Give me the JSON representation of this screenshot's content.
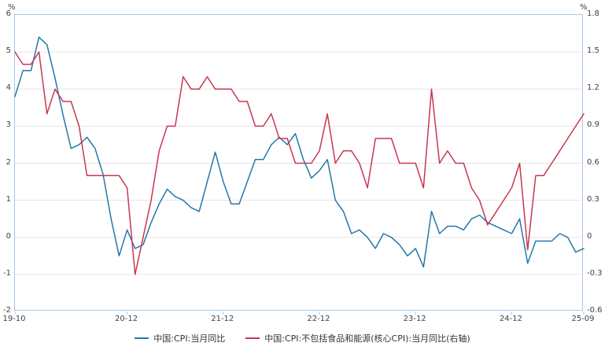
{
  "chart_data": {
    "type": "line",
    "title": "",
    "grid": "horizontal",
    "legend_position": "bottom",
    "left_axis": {
      "unit": "%",
      "min": -2,
      "max": 6,
      "step": 1,
      "ticks": [
        "6",
        "5",
        "4",
        "3",
        "2",
        "1",
        "0",
        "-1",
        "-2"
      ]
    },
    "right_axis": {
      "unit": "%",
      "min": -0.6,
      "max": 1.8,
      "step": 0.3,
      "ticks": [
        "1.8",
        "1.5",
        "1.2",
        "0.9",
        "0.6",
        "0.3",
        "0",
        "-0.3",
        "-0.6"
      ]
    },
    "x": [
      "19-10",
      "19-11",
      "19-12",
      "20-01",
      "20-02",
      "20-03",
      "20-04",
      "20-05",
      "20-06",
      "20-07",
      "20-08",
      "20-09",
      "20-10",
      "20-11",
      "20-12",
      "21-01",
      "21-02",
      "21-03",
      "21-04",
      "21-05",
      "21-06",
      "21-07",
      "21-08",
      "21-09",
      "21-10",
      "21-11",
      "21-12",
      "22-01",
      "22-02",
      "22-03",
      "22-04",
      "22-05",
      "22-06",
      "22-07",
      "22-08",
      "22-09",
      "22-10",
      "22-11",
      "22-12",
      "23-01",
      "23-02",
      "23-03",
      "23-04",
      "23-05",
      "23-06",
      "23-07",
      "23-08",
      "23-09",
      "23-10",
      "23-11",
      "23-12",
      "24-01",
      "24-02",
      "24-03",
      "24-04",
      "24-05",
      "24-06",
      "24-07",
      "24-08",
      "24-09",
      "24-10",
      "24-11",
      "24-12",
      "25-01",
      "25-02",
      "25-03",
      "25-04",
      "25-05",
      "25-06",
      "25-07",
      "25-08",
      "25-09"
    ],
    "x_ticks": [
      {
        "label": "19-10",
        "index": 0
      },
      {
        "label": "20-12",
        "index": 14
      },
      {
        "label": "21-12",
        "index": 26
      },
      {
        "label": "22-12",
        "index": 38
      },
      {
        "label": "23-12",
        "index": 50
      },
      {
        "label": "24-12",
        "index": 62
      },
      {
        "label": "25-09",
        "index": 71
      }
    ],
    "series": [
      {
        "name": "中国:CPI:当月同比",
        "axis": "left",
        "color": "#2478a8",
        "values": [
          3.8,
          4.5,
          4.5,
          5.4,
          5.2,
          4.3,
          3.3,
          2.4,
          2.5,
          2.7,
          2.4,
          1.7,
          0.5,
          -0.5,
          0.2,
          -0.3,
          -0.2,
          0.4,
          0.9,
          1.3,
          1.1,
          1.0,
          0.8,
          0.7,
          1.5,
          2.3,
          1.5,
          0.9,
          0.9,
          1.5,
          2.1,
          2.1,
          2.5,
          2.7,
          2.5,
          2.8,
          2.1,
          1.6,
          1.8,
          2.1,
          1.0,
          0.7,
          0.1,
          0.2,
          0.0,
          -0.3,
          0.1,
          0.0,
          -0.2,
          -0.5,
          -0.3,
          -0.8,
          0.7,
          0.1,
          0.3,
          0.3,
          0.2,
          0.5,
          0.6,
          0.4,
          0.3,
          0.2,
          0.1,
          0.5,
          -0.7,
          -0.1,
          -0.1,
          -0.1,
          0.1,
          0.0,
          -0.4,
          -0.3
        ]
      },
      {
        "name": "中国:CPI:不包括食品和能源(核心CPI):当月同比(右轴)",
        "axis": "right",
        "color": "#ca3650",
        "values": [
          1.5,
          1.4,
          1.4,
          1.5,
          1.0,
          1.2,
          1.1,
          1.1,
          0.9,
          0.5,
          0.5,
          0.5,
          0.5,
          0.5,
          0.4,
          -0.3,
          0.0,
          0.3,
          0.7,
          0.9,
          0.9,
          1.3,
          1.2,
          1.2,
          1.3,
          1.2,
          1.2,
          1.2,
          1.1,
          1.1,
          0.9,
          0.9,
          1.0,
          0.8,
          0.8,
          0.6,
          0.6,
          0.6,
          0.7,
          1.0,
          0.6,
          0.7,
          0.7,
          0.6,
          0.4,
          0.8,
          0.8,
          0.8,
          0.6,
          0.6,
          0.6,
          0.4,
          1.2,
          0.6,
          0.7,
          0.6,
          0.6,
          0.4,
          0.3,
          0.1,
          0.2,
          0.3,
          0.4,
          0.6,
          -0.1,
          0.5,
          0.5,
          0.6,
          0.7,
          0.8,
          0.9,
          1.0
        ]
      }
    ]
  }
}
